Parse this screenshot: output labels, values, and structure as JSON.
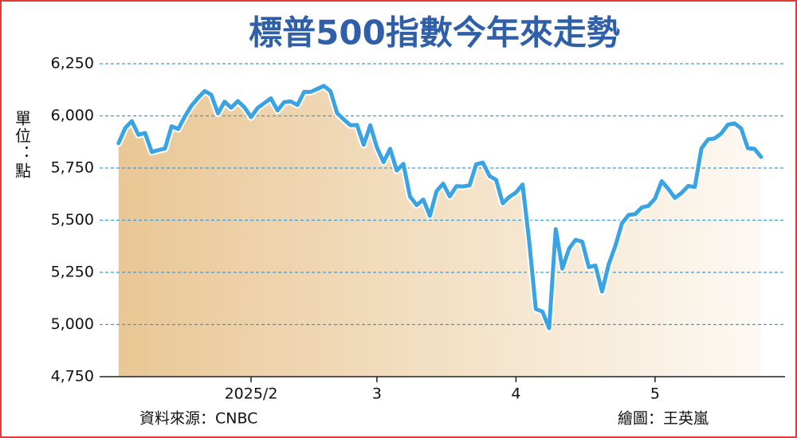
{
  "chart_data": {
    "type": "line",
    "title": "標普500指數今年來走勢",
    "y_label": "單位：點",
    "source": "資料來源：CNBC",
    "credit": "繪圖：王英嵐",
    "color": "#3aa3e3",
    "categories": [
      null,
      null,
      null,
      null,
      null,
      null,
      null,
      null,
      null,
      null,
      null,
      null,
      null,
      null,
      null,
      null,
      null,
      null,
      null,
      null,
      "2025/2",
      null,
      null,
      null,
      null,
      null,
      null,
      null,
      null,
      null,
      null,
      null,
      null,
      null,
      null,
      null,
      null,
      null,
      null,
      "3",
      null,
      null,
      null,
      null,
      null,
      null,
      null,
      null,
      null,
      null,
      null,
      null,
      null,
      null,
      null,
      null,
      null,
      null,
      null,
      null,
      "4",
      null,
      null,
      null,
      null,
      null,
      null,
      null,
      null,
      null,
      null,
      null,
      null,
      null,
      null,
      null,
      null,
      null,
      null,
      null,
      null,
      "5",
      null,
      null,
      null,
      null,
      null,
      null,
      null,
      null,
      null,
      null,
      null,
      null,
      null,
      null,
      null,
      null
    ],
    "values": [
      5869,
      5942,
      5975,
      5909,
      5918,
      5827,
      5836,
      5843,
      5950,
      5937,
      5997,
      6049,
      6086,
      6119,
      6101,
      6012,
      6068,
      6039,
      6071,
      6041,
      5994,
      6038,
      6061,
      6084,
      6026,
      6066,
      6069,
      6052,
      6115,
      6115,
      6129,
      6144,
      6118,
      6013,
      5983,
      5955,
      5956,
      5861,
      5955,
      5849,
      5778,
      5842,
      5738,
      5770,
      5614,
      5572,
      5599,
      5521,
      5639,
      5675,
      5614,
      5663,
      5662,
      5667,
      5768,
      5776,
      5712,
      5693,
      5581,
      5612,
      5633,
      5671,
      5397,
      5074,
      5062,
      4982,
      5457,
      5268,
      5363,
      5406,
      5397,
      5275,
      5283,
      5158,
      5288,
      5376,
      5485,
      5525,
      5529,
      5561,
      5569,
      5604,
      5687,
      5650,
      5607,
      5631,
      5664,
      5659,
      5844,
      5887,
      5892,
      5916,
      5958,
      5964,
      5940,
      5845,
      5842,
      5803
    ],
    "ylim": [
      4750,
      6250
    ],
    "yticks": [
      {
        "value": 4750,
        "label": "4,750"
      },
      {
        "value": 5000,
        "label": "5,000"
      },
      {
        "value": 5250,
        "label": "5,250"
      },
      {
        "value": 5500,
        "label": "5,500"
      },
      {
        "value": 5750,
        "label": "5,750"
      },
      {
        "value": 6000,
        "label": "6,000"
      },
      {
        "value": 6250,
        "label": "6,250"
      }
    ],
    "grid": true
  }
}
